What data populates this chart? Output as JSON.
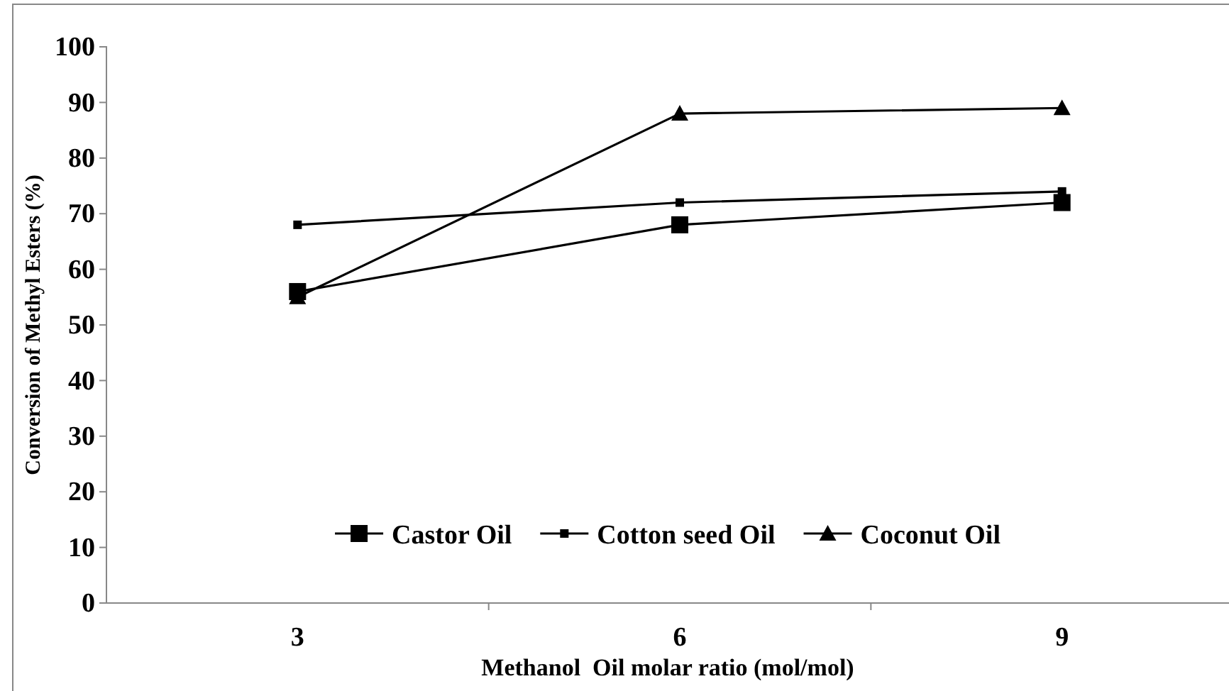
{
  "chart_data": {
    "type": "line",
    "xlabel": "Methanol  Oil molar ratio (mol/mol)",
    "ylabel": "Conversion of Methyl Esters (%)",
    "categories": [
      "3",
      "6",
      "9"
    ],
    "ylim": [
      0,
      100
    ],
    "yticks": [
      0,
      10,
      20,
      30,
      40,
      50,
      60,
      70,
      80,
      90,
      100
    ],
    "grid": false,
    "legend": "bottom",
    "line_style": "solid",
    "series": [
      {
        "name": "Castor Oil",
        "color": "#000000",
        "marker": "square",
        "values": [
          56,
          68,
          72
        ]
      },
      {
        "name": "Cotton seed Oil",
        "color": "#000000",
        "marker": "square-small",
        "values": [
          68,
          72,
          74
        ]
      },
      {
        "name": "Coconut Oil",
        "color": "#000000",
        "marker": "triangle",
        "values": [
          55,
          88,
          89
        ]
      }
    ]
  }
}
